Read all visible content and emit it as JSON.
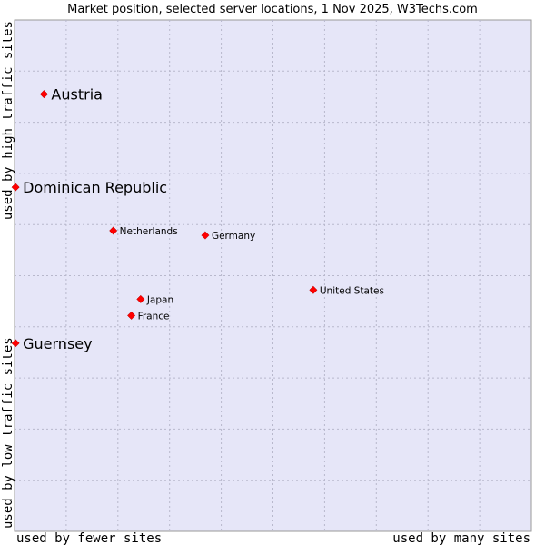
{
  "chart_data": {
    "type": "scatter",
    "title": "Market position, selected server locations, 1 Nov 2025, W3Techs.com",
    "xlabel_left": "used by fewer sites",
    "xlabel_right": "used by many sites",
    "ylabel_bottom": "used by low traffic sites",
    "ylabel_top": "used by high traffic sites",
    "xlim": [
      0,
      10
    ],
    "ylim": [
      0,
      10
    ],
    "grid": true,
    "background": "#e6e6f8",
    "grid_color": "#b8b8cc",
    "point_color": "#ff0000",
    "points": [
      {
        "name": "Austria",
        "x": 0.57,
        "y": 8.55,
        "emphasis": true
      },
      {
        "name": "Dominican Republic",
        "x": 0.02,
        "y": 6.73,
        "emphasis": true
      },
      {
        "name": "Netherlands",
        "x": 1.91,
        "y": 5.88,
        "emphasis": false
      },
      {
        "name": "Germany",
        "x": 3.69,
        "y": 5.79,
        "emphasis": false
      },
      {
        "name": "United States",
        "x": 5.78,
        "y": 4.72,
        "emphasis": false
      },
      {
        "name": "Japan",
        "x": 2.44,
        "y": 4.54,
        "emphasis": false
      },
      {
        "name": "France",
        "x": 2.26,
        "y": 4.22,
        "emphasis": false
      },
      {
        "name": "Guernsey",
        "x": 0.02,
        "y": 3.68,
        "emphasis": true
      }
    ]
  }
}
